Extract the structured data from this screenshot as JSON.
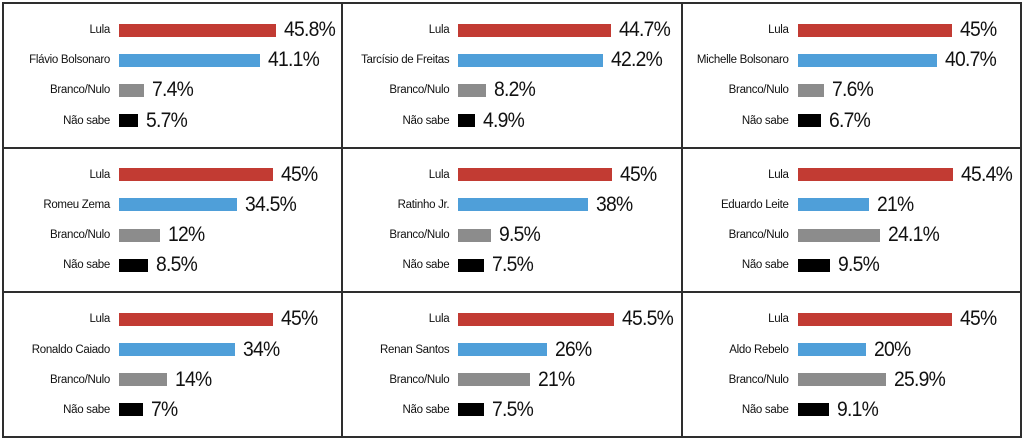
{
  "colors": {
    "lula_bar": "#c23b33",
    "challenger_bar": "#4f9fd9",
    "branco_nulo_bar": "#8c8c8c",
    "nao_sabe_bar": "#000000",
    "grid_line": "#2e2e2e",
    "background": "#ffffff",
    "text": "#111111"
  },
  "bar_color_keys": [
    "lula_bar",
    "challenger_bar",
    "branco_nulo_bar",
    "nao_sabe_bar"
  ],
  "chart_data": [
    {
      "type": "bar",
      "orientation": "horizontal",
      "categories": [
        "Lula",
        "Flávio Bolsonaro",
        "Branco/Nulo",
        "Não sabe"
      ],
      "values": [
        45.8,
        41.1,
        7.4,
        5.7
      ],
      "value_labels": [
        "45.8%",
        "41.1%",
        "7.4%",
        "5.7%"
      ],
      "xlim": [
        0,
        50
      ],
      "grid": false,
      "legend": false
    },
    {
      "type": "bar",
      "orientation": "horizontal",
      "categories": [
        "Lula",
        "Tarcísio de Freitas",
        "Branco/Nulo",
        "Não sabe"
      ],
      "values": [
        44.7,
        42.2,
        8.2,
        4.9
      ],
      "value_labels": [
        "44.7%",
        "42.2%",
        "8.2%",
        "4.9%"
      ],
      "xlim": [
        0,
        50
      ],
      "grid": false,
      "legend": false
    },
    {
      "type": "bar",
      "orientation": "horizontal",
      "categories": [
        "Lula",
        "Michelle Bolsonaro",
        "Branco/Nulo",
        "Não sabe"
      ],
      "values": [
        45,
        40.7,
        7.6,
        6.7
      ],
      "value_labels": [
        "45%",
        "40.7%",
        "7.6%",
        "6.7%"
      ],
      "xlim": [
        0,
        50
      ],
      "grid": false,
      "legend": false
    },
    {
      "type": "bar",
      "orientation": "horizontal",
      "categories": [
        "Lula",
        "Romeu Zema",
        "Branco/Nulo",
        "Não sabe"
      ],
      "values": [
        45,
        34.5,
        12,
        8.5
      ],
      "value_labels": [
        "45%",
        "34.5%",
        "12%",
        "8.5%"
      ],
      "xlim": [
        0,
        50
      ],
      "grid": false,
      "legend": false
    },
    {
      "type": "bar",
      "orientation": "horizontal",
      "categories": [
        "Lula",
        "Ratinho Jr.",
        "Branco/Nulo",
        "Não sabe"
      ],
      "values": [
        45,
        38,
        9.5,
        7.5
      ],
      "value_labels": [
        "45%",
        "38%",
        "9.5%",
        "7.5%"
      ],
      "xlim": [
        0,
        50
      ],
      "grid": false,
      "legend": false
    },
    {
      "type": "bar",
      "orientation": "horizontal",
      "categories": [
        "Lula",
        "Eduardo Leite",
        "Branco/Nulo",
        "Não sabe"
      ],
      "values": [
        45.4,
        21,
        24.1,
        9.5
      ],
      "value_labels": [
        "45.4%",
        "21%",
        "24.1%",
        "9.5%"
      ],
      "xlim": [
        0,
        50
      ],
      "grid": false,
      "legend": false
    },
    {
      "type": "bar",
      "orientation": "horizontal",
      "categories": [
        "Lula",
        "Ronaldo Caiado",
        "Branco/Nulo",
        "Não sabe"
      ],
      "values": [
        45,
        34,
        14,
        7
      ],
      "value_labels": [
        "45%",
        "34%",
        "14%",
        "7%"
      ],
      "xlim": [
        0,
        50
      ],
      "grid": false,
      "legend": false
    },
    {
      "type": "bar",
      "orientation": "horizontal",
      "categories": [
        "Lula",
        "Renan Santos",
        "Branco/Nulo",
        "Não sabe"
      ],
      "values": [
        45.5,
        26,
        21,
        7.5
      ],
      "value_labels": [
        "45.5%",
        "26%",
        "21%",
        "7.5%"
      ],
      "xlim": [
        0,
        50
      ],
      "grid": false,
      "legend": false
    },
    {
      "type": "bar",
      "orientation": "horizontal",
      "categories": [
        "Lula",
        "Aldo Rebelo",
        "Branco/Nulo",
        "Não sabe"
      ],
      "values": [
        45,
        20,
        25.9,
        9.1
      ],
      "value_labels": [
        "45%",
        "20%",
        "25.9%",
        "9.1%"
      ],
      "xlim": [
        0,
        50
      ],
      "grid": false,
      "legend": false
    }
  ]
}
